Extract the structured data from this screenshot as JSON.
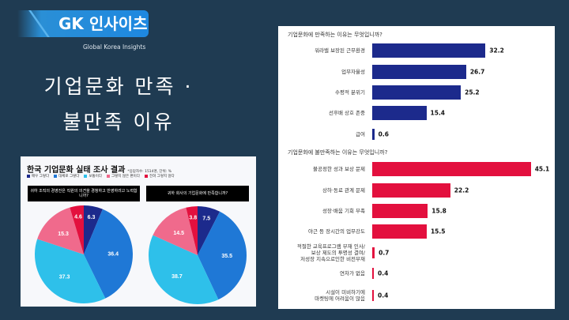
{
  "logo": {
    "text": "GK 인사이츠",
    "tagline": "Global Korea Insights"
  },
  "title": {
    "line1": "기업문화 만족 ·",
    "line2": "불만족 이유"
  },
  "colors": {
    "very": "#1c2a8c",
    "mostly": "#1f78d6",
    "neutral": "#2ec0ea",
    "not_really": "#f06a8c",
    "not_at_all": "#e3103e",
    "sat_bar": "#1c2a8c",
    "dis_bar": "#e3103e"
  },
  "chart_data": [
    {
      "type": "pie",
      "title": "한국 기업문화 실태 조사 결과",
      "note": "*응답자수: 1514명, 단위: %",
      "legend": [
        "매우 그렇다",
        "대체로 그렇다",
        "보통이다",
        "그렇지 않은 편이다",
        "전혀 그렇지 않다"
      ],
      "charts": [
        {
          "question": "귀하 조직의 경영진은 직원의 의견을 경청하고 반영하려고 노력합니까?",
          "values": [
            6.3,
            36.4,
            37.3,
            15.3,
            4.6
          ]
        },
        {
          "question": "귀하 회사의 기업문화에 만족합니까?",
          "values": [
            7.5,
            35.5,
            38.7,
            14.5,
            3.8
          ]
        }
      ]
    },
    {
      "type": "bar",
      "title": "기업문화에 만족하는 이유는 무엇입니까?",
      "categories": [
        "워라밸 보장된 근무환경",
        "업무자율성",
        "수평적 분위기",
        "선후배 상호 존중",
        "급여"
      ],
      "values": [
        32.2,
        26.7,
        25.2,
        15.4,
        0.6
      ]
    },
    {
      "type": "bar",
      "title": "기업문화에 불만족하는 이유는 무엇입니까?",
      "categories": [
        "불공정한 성과 보상 문제",
        "상하·동료 관계 문제",
        "성장·배움 기회 부족",
        "야근 등 장시간의 업무강도",
        "적절한 교육프로그램 부재 인사/\n보상 제도의 투명성 결여/\n저성장 지속으로인한 비전부재",
        "연차가 없음",
        "시설이 미비하기에\n마켓팅에 어려움이 많음"
      ],
      "values": [
        45.1,
        22.2,
        15.8,
        15.5,
        0.7,
        0.4,
        0.4
      ]
    }
  ]
}
